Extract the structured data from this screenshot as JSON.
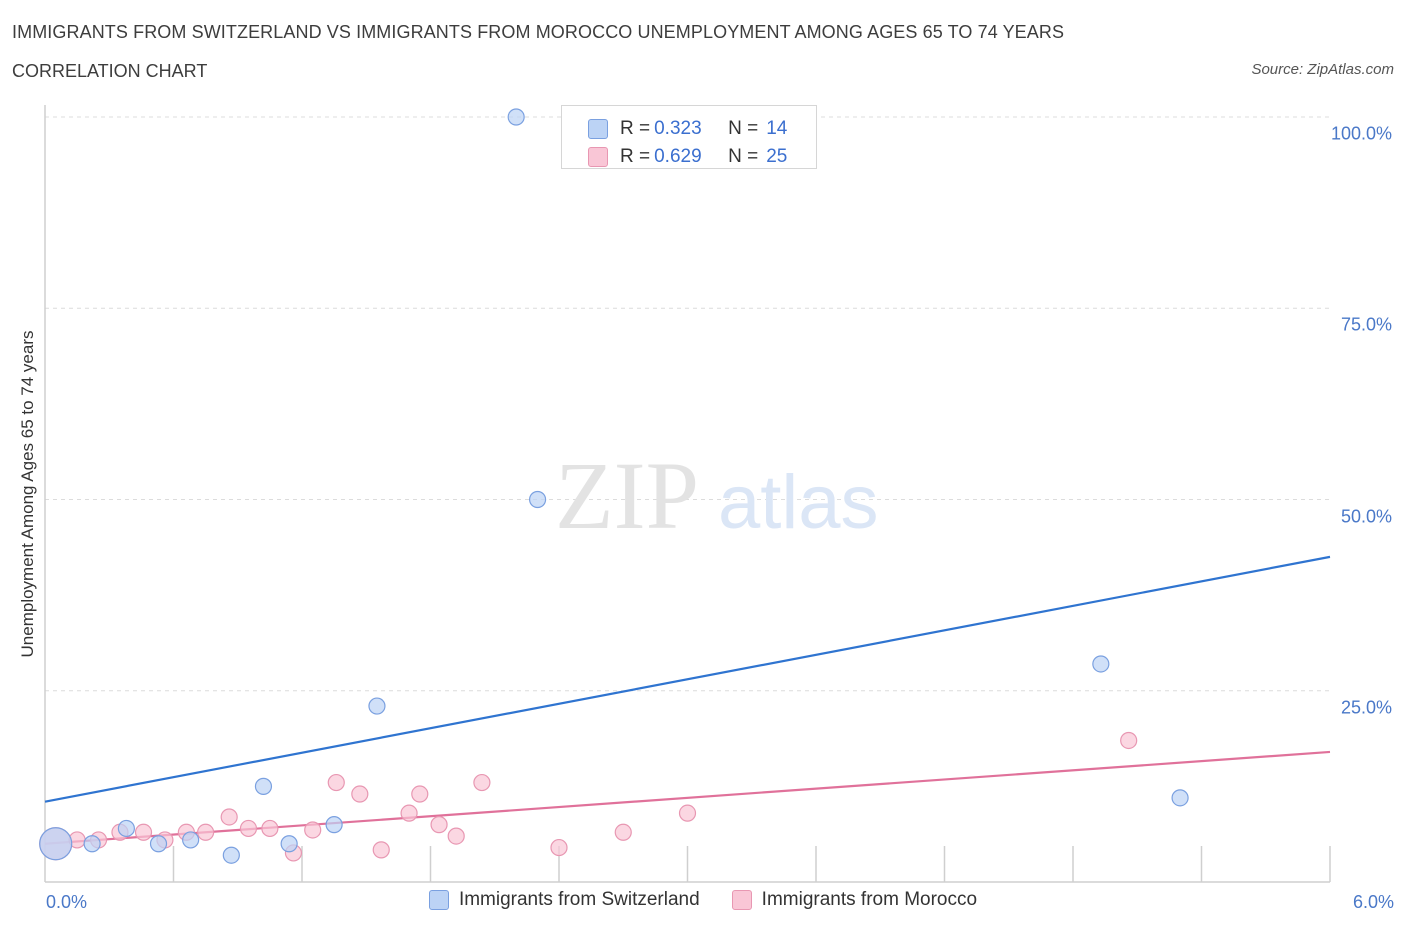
{
  "header": {
    "title": "IMMIGRANTS FROM SWITZERLAND VS IMMIGRANTS FROM MOROCCO UNEMPLOYMENT AMONG AGES 65 TO 74 YEARS",
    "subtitle": "CORRELATION CHART",
    "source": "Source: ZipAtlas.com"
  },
  "watermark": {
    "zip": "ZIP",
    "atlas": "atlas"
  },
  "legend_stats": [
    {
      "r_label": "R = ",
      "r_value": "0.323",
      "n_label": "N = ",
      "n_value": "14"
    },
    {
      "r_label": "R = ",
      "r_value": "0.629",
      "n_label": "N = ",
      "n_value": "25"
    }
  ],
  "colors": {
    "switzerland_fill": "#bcd3f5",
    "switzerland_stroke": "#7aa0e0",
    "switzerland_line": "#2f74d0",
    "morocco_fill": "#f9c6d6",
    "morocco_stroke": "#e897b2",
    "morocco_line": "#e0719a",
    "grid": "#dcdcdc",
    "axis": "#cfcfcf"
  },
  "chart_data": {
    "type": "scatter",
    "title": "IMMIGRANTS FROM SWITZERLAND VS IMMIGRANTS FROM MOROCCO UNEMPLOYMENT AMONG AGES 65 TO 74 YEARS",
    "subtitle": "CORRELATION CHART",
    "xlabel": "",
    "ylabel": "Unemployment Among Ages 65 to 74 years",
    "xlim": [
      0,
      6
    ],
    "ylim": [
      0,
      100
    ],
    "x_tick_labels": [
      "0.0%",
      "6.0%"
    ],
    "y_ticks": [
      25,
      50,
      75,
      100
    ],
    "y_tick_labels": [
      "25.0%",
      "50.0%",
      "75.0%",
      "100.0%"
    ],
    "grid": true,
    "legend_position": "bottom",
    "series": [
      {
        "name": "Immigrants from Switzerland",
        "r": 0.323,
        "n": 14,
        "points": [
          {
            "x": 0.05,
            "y": 5.0,
            "big": true
          },
          {
            "x": 0.22,
            "y": 5.0
          },
          {
            "x": 0.38,
            "y": 7.0
          },
          {
            "x": 0.53,
            "y": 5.0
          },
          {
            "x": 0.68,
            "y": 5.5
          },
          {
            "x": 0.87,
            "y": 3.5
          },
          {
            "x": 1.02,
            "y": 12.5
          },
          {
            "x": 1.14,
            "y": 5.0
          },
          {
            "x": 1.35,
            "y": 7.5
          },
          {
            "x": 1.55,
            "y": 23.0
          },
          {
            "x": 2.2,
            "y": 100.0
          },
          {
            "x": 2.3,
            "y": 50.0
          },
          {
            "x": 4.93,
            "y": 28.5
          },
          {
            "x": 5.3,
            "y": 11.0
          }
        ],
        "trend": {
          "x0": 0,
          "y0": 10.5,
          "x1": 6,
          "y1": 42.5
        }
      },
      {
        "name": "Immigrants from Morocco",
        "r": 0.629,
        "n": 25,
        "points": [
          {
            "x": 0.05,
            "y": 5.0,
            "big": true
          },
          {
            "x": 0.15,
            "y": 5.5
          },
          {
            "x": 0.25,
            "y": 5.5
          },
          {
            "x": 0.35,
            "y": 6.5
          },
          {
            "x": 0.46,
            "y": 6.5
          },
          {
            "x": 0.56,
            "y": 5.5
          },
          {
            "x": 0.66,
            "y": 6.5
          },
          {
            "x": 0.75,
            "y": 6.5
          },
          {
            "x": 0.86,
            "y": 8.5
          },
          {
            "x": 0.95,
            "y": 7.0
          },
          {
            "x": 1.05,
            "y": 7.0
          },
          {
            "x": 1.16,
            "y": 3.8
          },
          {
            "x": 1.25,
            "y": 6.8
          },
          {
            "x": 1.36,
            "y": 13.0
          },
          {
            "x": 1.47,
            "y": 11.5
          },
          {
            "x": 1.57,
            "y": 4.2
          },
          {
            "x": 1.7,
            "y": 9.0
          },
          {
            "x": 1.75,
            "y": 11.5
          },
          {
            "x": 1.84,
            "y": 7.5
          },
          {
            "x": 1.92,
            "y": 6.0
          },
          {
            "x": 2.04,
            "y": 13.0
          },
          {
            "x": 2.4,
            "y": 4.5
          },
          {
            "x": 2.7,
            "y": 6.5
          },
          {
            "x": 3.0,
            "y": 9.0
          },
          {
            "x": 5.06,
            "y": 18.5
          }
        ],
        "trend": {
          "x0": 0,
          "y0": 5.0,
          "x1": 6,
          "y1": 17.0
        }
      }
    ]
  }
}
